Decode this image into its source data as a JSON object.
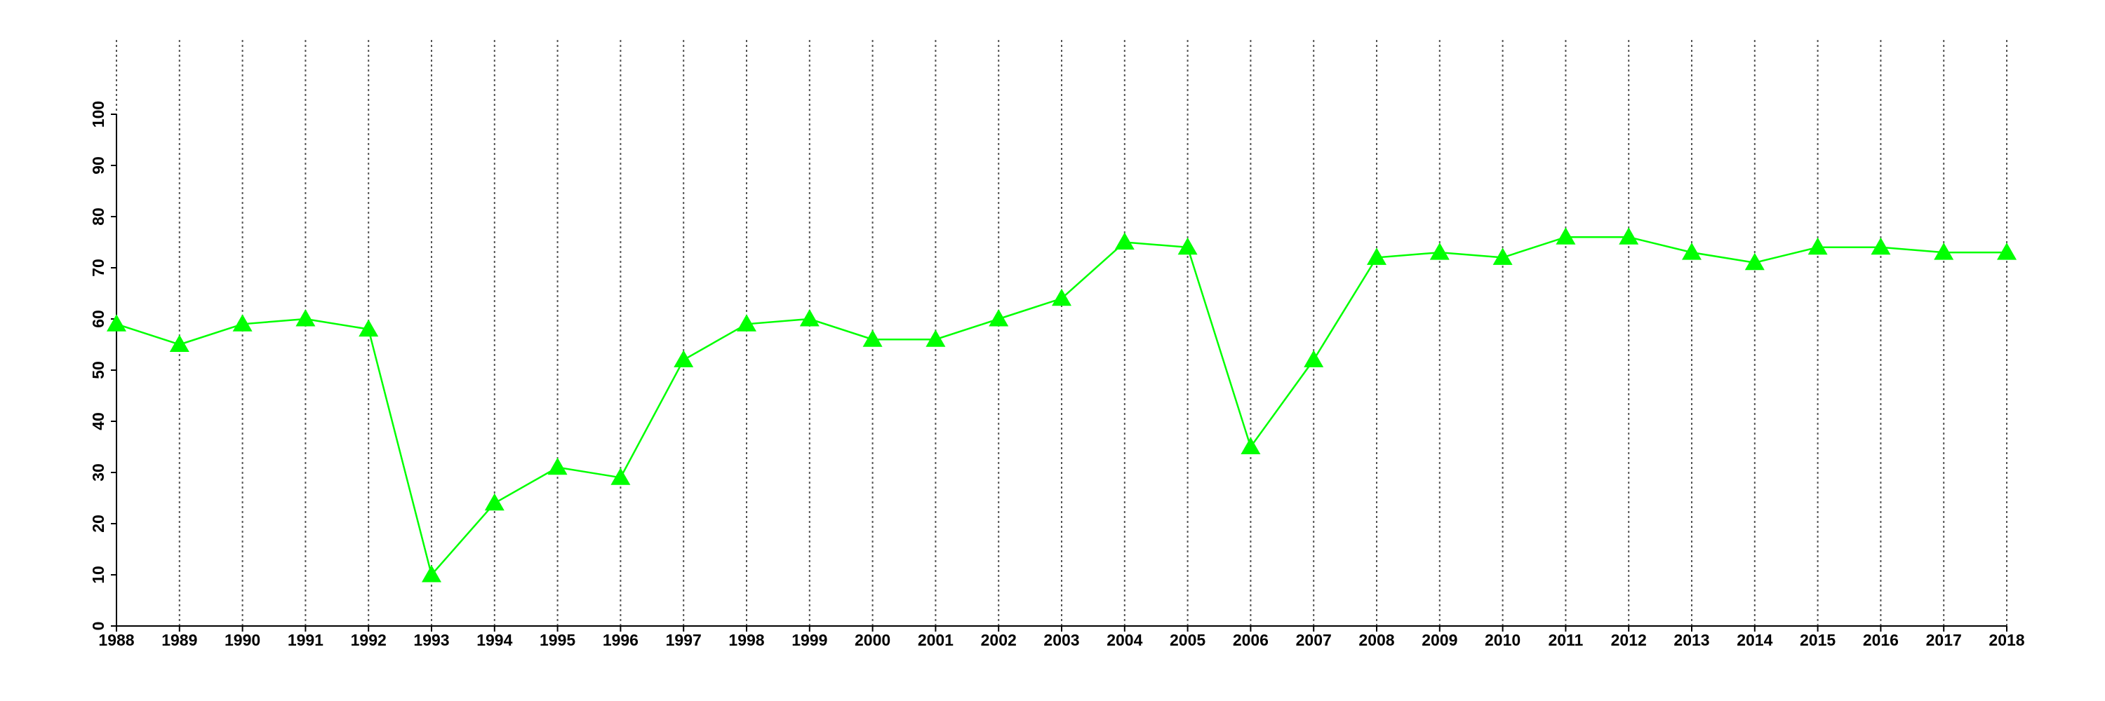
{
  "chart_data": {
    "type": "line",
    "x": [
      1988,
      1989,
      1990,
      1991,
      1992,
      1993,
      1994,
      1995,
      1996,
      1997,
      1998,
      1999,
      2000,
      2001,
      2002,
      2003,
      2004,
      2005,
      2006,
      2007,
      2008,
      2009,
      2010,
      2011,
      2012,
      2013,
      2014,
      2015,
      2016,
      2017,
      2018
    ],
    "series": [
      {
        "color": "#00ff00",
        "marker": "triangle",
        "values": [
          59,
          55,
          59,
          60,
          58,
          10,
          24,
          31,
          29,
          52,
          59,
          60,
          56,
          56,
          60,
          64,
          75,
          74,
          35,
          52,
          72,
          73,
          72,
          76,
          76,
          73,
          71,
          74,
          74,
          73,
          73
        ]
      }
    ],
    "xlim": [
      1988,
      2018
    ],
    "xticks": [
      1988,
      1989,
      1990,
      1991,
      1992,
      1993,
      1994,
      1995,
      1996,
      1997,
      1998,
      1999,
      2000,
      2001,
      2002,
      2003,
      2004,
      2005,
      2006,
      2007,
      2008,
      2009,
      2010,
      2011,
      2012,
      2013,
      2014,
      2015,
      2016,
      2017,
      2018
    ],
    "ylim": [
      0,
      100
    ],
    "yticks": [
      0,
      10,
      20,
      30,
      40,
      50,
      60,
      70,
      80,
      90,
      100
    ],
    "grid": "x"
  }
}
